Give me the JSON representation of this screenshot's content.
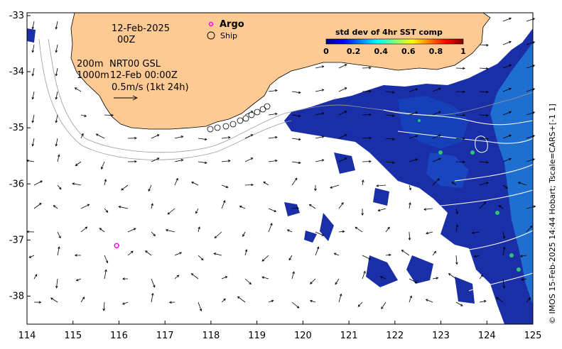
{
  "map": {
    "date_line1": "12-Feb-2025",
    "date_line2": "00Z",
    "depth_line1": "200m",
    "depth_line2": "1000m",
    "product_line1": "NRT00 GSL",
    "product_line2": "12-Feb 00:00Z",
    "scale_text": "0.5m/s (1kt 24h)",
    "argo_label": "Argo",
    "ship_label": "Ship",
    "credit": "© IMOS 15-Feb-2025 14:44 Hobart; Tscale=CARS+[-1 1]"
  },
  "colorbar": {
    "title": "std dev of 4hr SST comp",
    "ticks": [
      "0",
      "0.2",
      "0.4",
      "0.6",
      "0.8",
      "1"
    ],
    "colors": [
      "#00007f",
      "#0000ff",
      "#007fff",
      "#00ffff",
      "#7fff7f",
      "#ffff00",
      "#ff7f00",
      "#ff0000",
      "#7f0000"
    ]
  },
  "axes": {
    "x_ticks": [
      "114",
      "115",
      "116",
      "117",
      "118",
      "119",
      "120",
      "121",
      "122",
      "123",
      "124",
      "125"
    ],
    "y_ticks": [
      "-33",
      "-34",
      "-35",
      "-36",
      "-37",
      "-38"
    ]
  },
  "colors": {
    "land": "#fdca94",
    "sst_low": "#1a2ea8",
    "sst_mid": "#1f7fd0"
  },
  "argo_floats": [
    {
      "lon": 115.95,
      "lat": -37.1
    }
  ]
}
